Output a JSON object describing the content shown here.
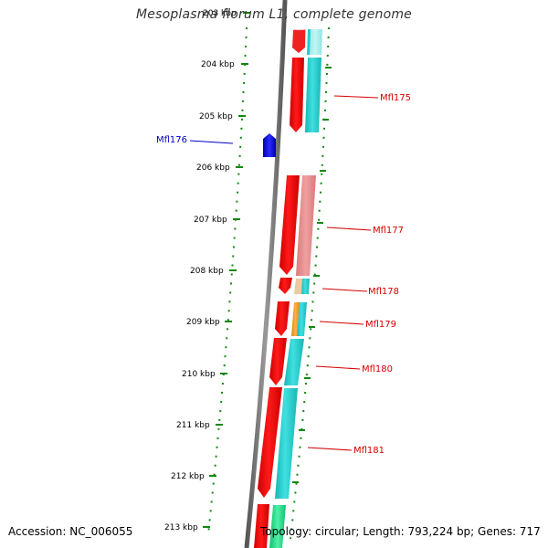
{
  "title": "Mesoplasma florum L1, complete genome",
  "footer": {
    "accession": "Accession: NC_006055",
    "topology": "Topology: circular; Length: 793,224 bp; Genes: 717"
  },
  "ticks": [
    "203 kbp",
    "204 kbp",
    "205 kbp",
    "206 kbp",
    "207 kbp",
    "208 kbp",
    "209 kbp",
    "210 kbp",
    "211 kbp",
    "212 kbp",
    "213 kbp"
  ],
  "gene_labels": [
    {
      "name": "Mfl175",
      "color": "#d40000"
    },
    {
      "name": "Mfl176",
      "color": "#0000cc"
    },
    {
      "name": "Mfl177",
      "color": "#d40000"
    },
    {
      "name": "Mfl178",
      "color": "#d40000"
    },
    {
      "name": "Mfl179",
      "color": "#d40000"
    },
    {
      "name": "Mfl180",
      "color": "#d40000"
    },
    {
      "name": "Mfl181",
      "color": "#d40000"
    }
  ],
  "colors": {
    "cds_forward": "#ee0000",
    "cds_reverse": "#0000ee",
    "cog_cyan": "#22cccc",
    "cog_pink": "#ee8888",
    "cog_orange": "#ee9922",
    "cog_green": "#22dd88",
    "backbone": "#7a7a7a",
    "tick": "#118811",
    "label_red": "#d40000",
    "label_blue": "#0000cc"
  }
}
